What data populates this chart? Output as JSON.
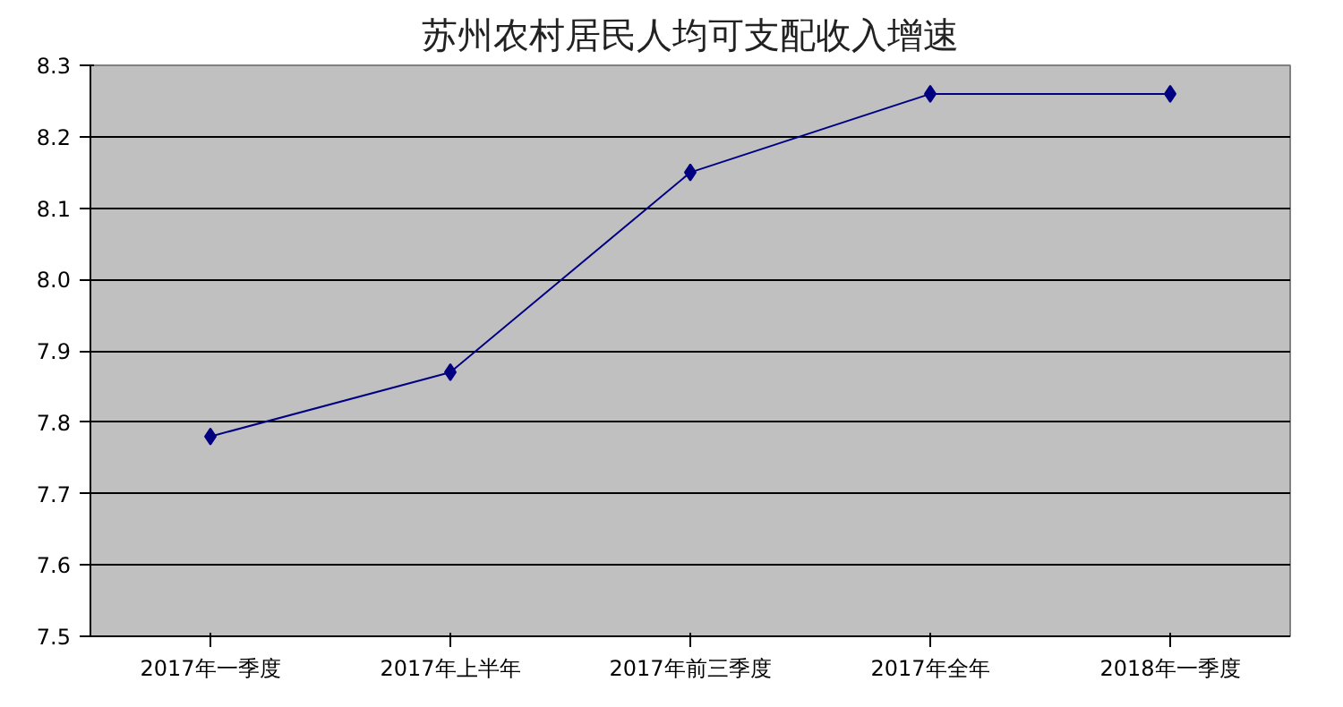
{
  "chart_data": {
    "type": "line",
    "title": "苏州农村居民人均可支配收入增速",
    "categories": [
      "2017年一季度",
      "2017年上半年",
      "2017年前三季度",
      "2017年全年",
      "2018年一季度"
    ],
    "series": [
      {
        "color": "#000080",
        "values": [
          7.78,
          7.87,
          8.15,
          8.26,
          8.26
        ]
      }
    ],
    "ylim": [
      7.5,
      8.3
    ],
    "yticks": [
      7.5,
      7.6,
      7.7,
      7.8,
      7.9,
      {
        "value": 8.0,
        "label": "8.0"
      },
      8.1,
      8.2,
      8.3
    ],
    "grid": "y",
    "marker": "diamond",
    "line_style": "solid"
  }
}
